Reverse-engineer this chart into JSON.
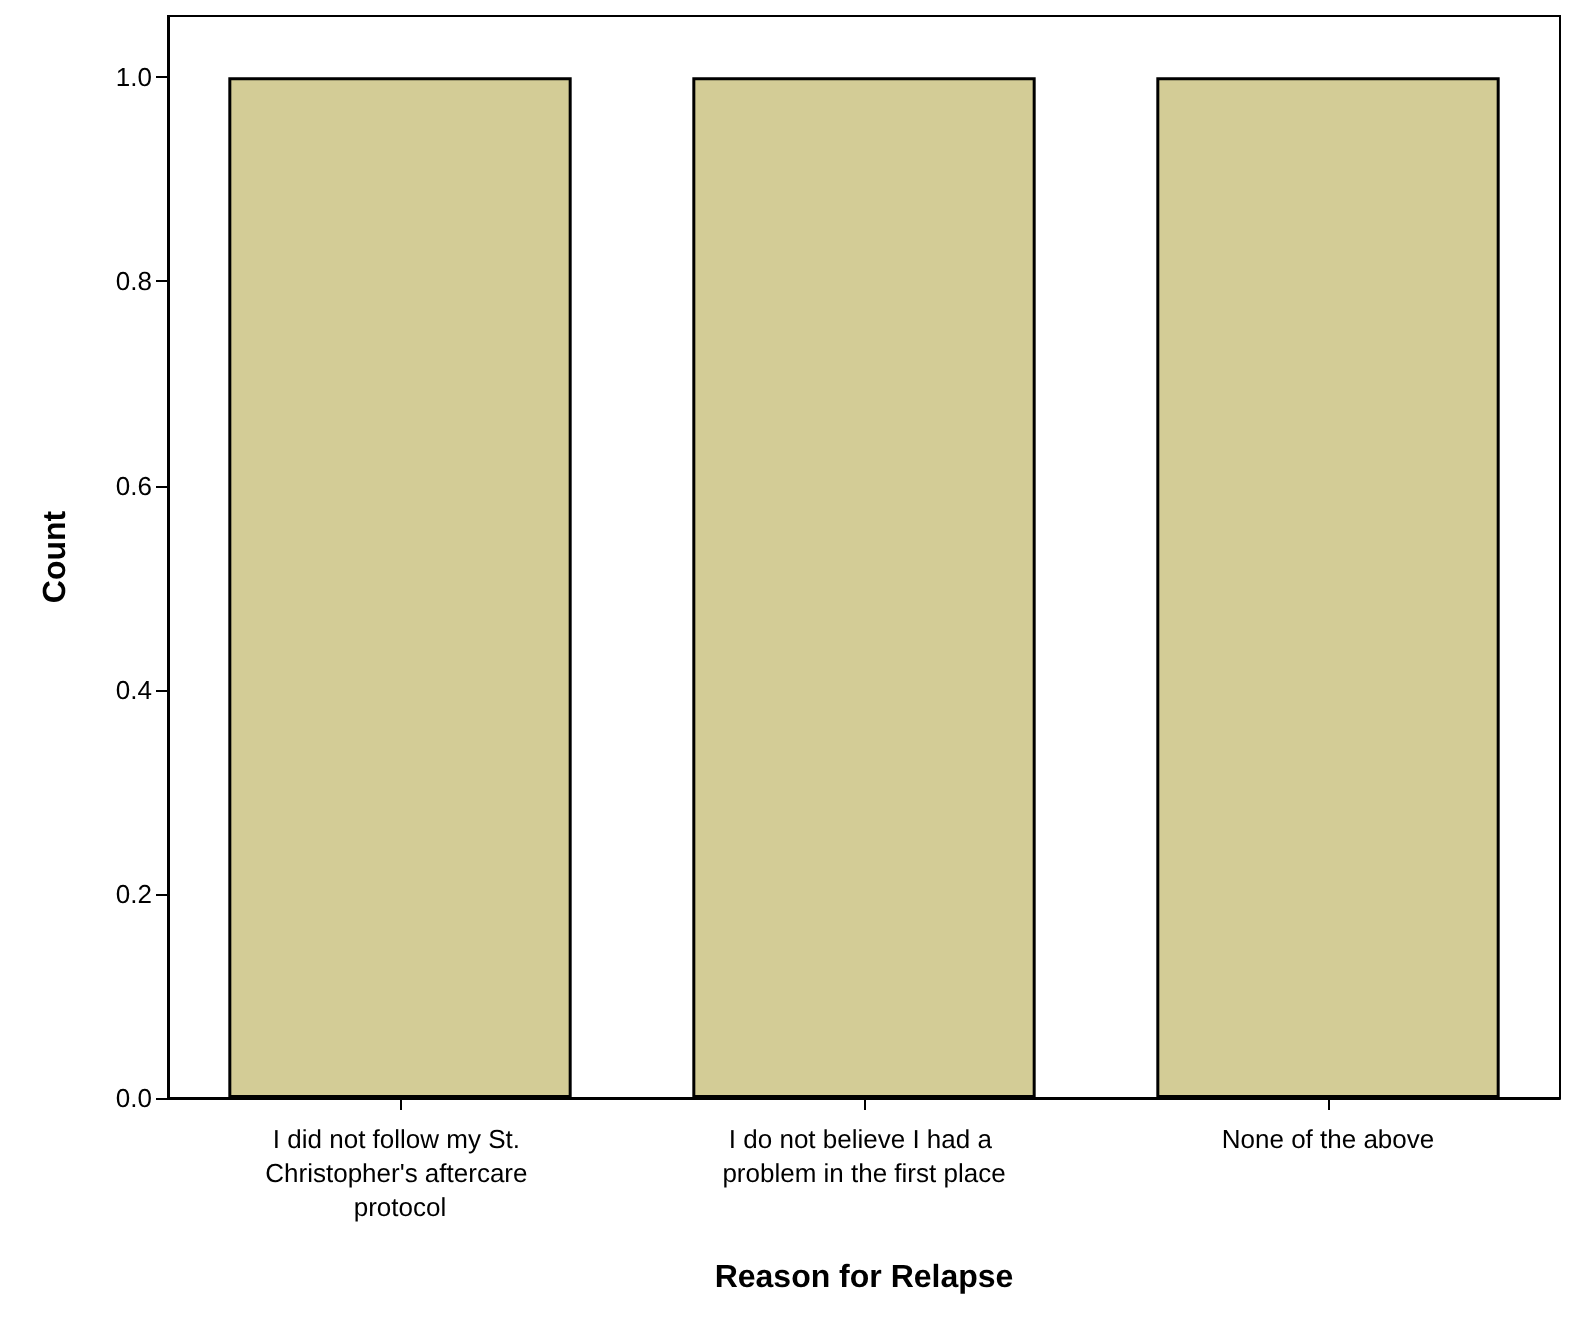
{
  "chart_data": {
    "type": "bar",
    "xlabel": "Reason for Relapse",
    "ylabel": "Count",
    "categories": [
      "I did not follow my St. Christopher's aftercare protocol",
      "I do not believe I had a problem in the first place",
      "None of the above"
    ],
    "values": [
      1,
      1,
      1
    ],
    "color": "#d3cc96",
    "ylim": [
      0,
      1.06
    ],
    "yticks": [
      {
        "value": 0,
        "label": "0.0"
      },
      {
        "value": 0.2,
        "label": "0.2"
      },
      {
        "value": 0.4,
        "label": "0.4"
      },
      {
        "value": 0.6,
        "label": "0.6"
      },
      {
        "value": 0.8,
        "label": "0.8"
      },
      {
        "value": 1,
        "label": "1.0"
      }
    ],
    "grid": false
  }
}
